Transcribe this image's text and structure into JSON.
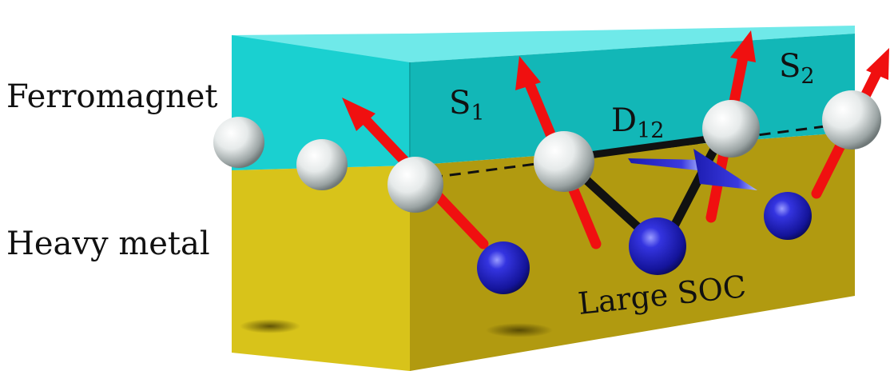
{
  "labels": {
    "ferromagnet": "Ferromagnet",
    "heavy_metal": "Heavy metal",
    "large_soc": "Large SOC"
  },
  "spins": {
    "s1": {
      "symbol": "S",
      "index": "1"
    },
    "s2": {
      "symbol": "S",
      "index": "2"
    }
  },
  "dmi": {
    "symbol": "D",
    "index": "12"
  },
  "colors": {
    "ferromagnet_front": "#1ad0d0",
    "ferromagnet_top": "#6fe9e9",
    "ferromagnet_side": "#12b7b7",
    "heavy_metal_front": "#d8c31a",
    "heavy_metal_side": "#b19a10",
    "spin_arrow": "#f01010",
    "dmi_vector": "#2a2ad8",
    "heavy_atom": "#1a1ac0",
    "magnetic_atom": "#e8ecec",
    "bond": "#111111"
  }
}
